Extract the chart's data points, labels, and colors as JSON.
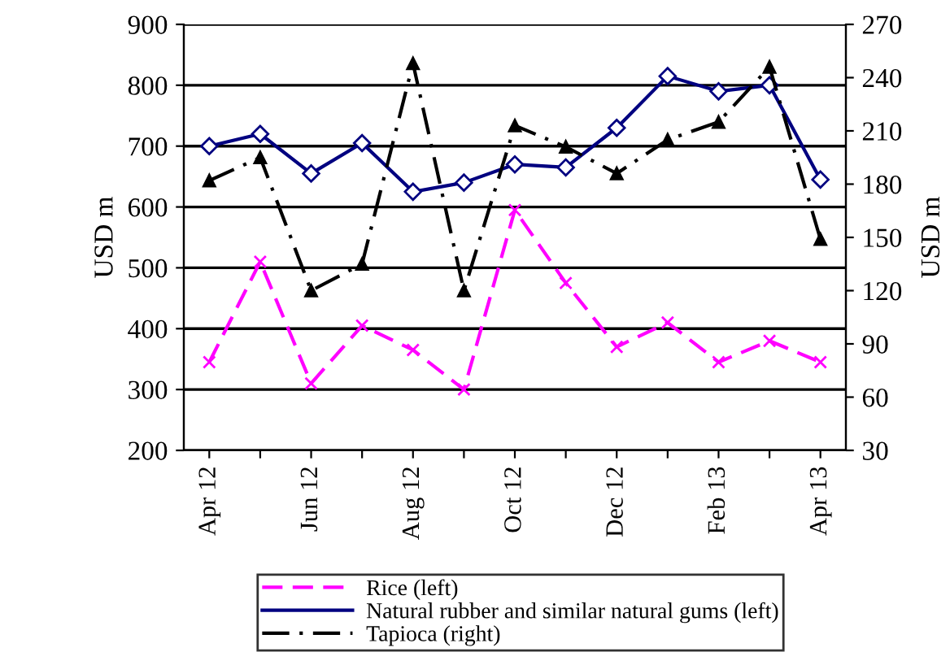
{
  "chart_data": {
    "type": "line",
    "categories": [
      "Apr 12",
      null,
      "Jun 12",
      null,
      "Aug 12",
      null,
      "Oct 12",
      null,
      "Dec 12",
      null,
      "Feb 13",
      null,
      "Apr 13"
    ],
    "ylabel": "USD m",
    "y2label": "USD m",
    "ylim": [
      200,
      900
    ],
    "yticks": [
      200,
      300,
      400,
      500,
      600,
      700,
      800,
      900
    ],
    "y2lim": [
      30,
      270
    ],
    "y2ticks": [
      30,
      60,
      90,
      120,
      150,
      180,
      210,
      240,
      270
    ],
    "grid": "y",
    "legend": "bottom",
    "series": [
      {
        "name": "Rice (left)",
        "color": "#ff00ff",
        "marker": "cross",
        "line_style": "dashed",
        "values": [
          345,
          510,
          310,
          405,
          365,
          300,
          595,
          475,
          370,
          410,
          345,
          380,
          345
        ]
      },
      {
        "name": "Natural rubber and similar natural gums (left)",
        "color": "#000080",
        "marker": "diamond",
        "line_style": "solid",
        "values": [
          700,
          720,
          655,
          705,
          625,
          640,
          670,
          665,
          730,
          815,
          790,
          800,
          645
        ]
      },
      {
        "name": "Tapioca (right)",
        "color": "#000000",
        "marker": "triangle",
        "line_style": "dashdot",
        "axis": "y2",
        "values": [
          182,
          195,
          120,
          135,
          248,
          120,
          213,
          201,
          186,
          205,
          215,
          246,
          149
        ]
      }
    ]
  }
}
